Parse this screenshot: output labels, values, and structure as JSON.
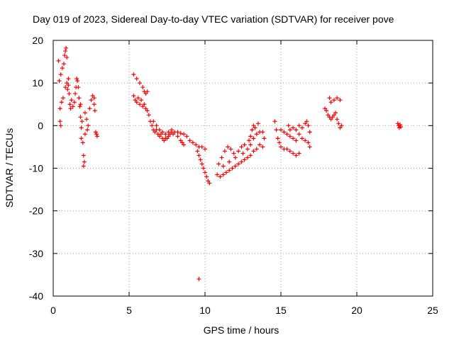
{
  "chart_data": {
    "type": "scatter",
    "title": "Day 019 of 2023, Sidereal Day-to-day VTEC variation (SDTVAR) for receiver pove",
    "xlabel": "GPS time / hours",
    "ylabel": "SDTVAR / TECUs",
    "xlim": [
      0,
      25
    ],
    "ylim": [
      -40,
      20
    ],
    "xticks": [
      0,
      5,
      10,
      15,
      20,
      25
    ],
    "yticks": [
      -40,
      -30,
      -20,
      -10,
      0,
      10,
      20
    ],
    "grid": true,
    "marker": "+",
    "color": "#ff0000",
    "series": [
      {
        "name": "SDTVAR",
        "points": [
          [
            0.35,
            15.2
          ],
          [
            0.4,
            10.5
          ],
          [
            0.45,
            4.0
          ],
          [
            0.45,
            1.0
          ],
          [
            0.5,
            0.0
          ],
          [
            0.5,
            12.0
          ],
          [
            0.55,
            5.5
          ],
          [
            0.6,
            13.5
          ],
          [
            0.65,
            6.5
          ],
          [
            0.7,
            14.5
          ],
          [
            0.75,
            16.5
          ],
          [
            0.8,
            17.5
          ],
          [
            0.85,
            18.2
          ],
          [
            0.9,
            16.0
          ],
          [
            0.8,
            9.0
          ],
          [
            0.9,
            10.0
          ],
          [
            0.95,
            8.5
          ],
          [
            1.0,
            9.5
          ],
          [
            1.0,
            11.0
          ],
          [
            1.05,
            7.5
          ],
          [
            1.1,
            5.0
          ],
          [
            1.15,
            4.0
          ],
          [
            1.2,
            6.0
          ],
          [
            1.3,
            4.5
          ],
          [
            1.4,
            5.5
          ],
          [
            1.45,
            7.5
          ],
          [
            1.5,
            9.0
          ],
          [
            1.55,
            11.0
          ],
          [
            1.6,
            10.5
          ],
          [
            1.65,
            9.0
          ],
          [
            1.7,
            6.5
          ],
          [
            1.75,
            4.5
          ],
          [
            1.8,
            5.0
          ],
          [
            1.8,
            2.0
          ],
          [
            1.85,
            -0.5
          ],
          [
            1.85,
            -3.0
          ],
          [
            1.9,
            1.0
          ],
          [
            1.95,
            -4.0
          ],
          [
            2.0,
            -7.0
          ],
          [
            2.0,
            -9.5
          ],
          [
            2.05,
            -8.5
          ],
          [
            2.1,
            -2.0
          ],
          [
            2.1,
            3.0
          ],
          [
            2.2,
            1.5
          ],
          [
            2.25,
            -1.0
          ],
          [
            2.3,
            0.0
          ],
          [
            2.4,
            4.0
          ],
          [
            2.5,
            6.0
          ],
          [
            2.6,
            7.0
          ],
          [
            2.7,
            5.0
          ],
          [
            2.75,
            3.5
          ],
          [
            2.8,
            -1.5
          ],
          [
            2.85,
            -2.0
          ],
          [
            2.9,
            -2.5
          ],
          [
            2.7,
            6.5
          ],
          [
            5.3,
            12.0
          ],
          [
            5.5,
            11.0
          ],
          [
            5.7,
            10.0
          ],
          [
            5.9,
            9.0
          ],
          [
            6.0,
            8.0
          ],
          [
            6.1,
            7.5
          ],
          [
            6.2,
            8.0
          ],
          [
            5.3,
            7.0
          ],
          [
            5.4,
            6.0
          ],
          [
            5.5,
            5.5
          ],
          [
            5.6,
            6.5
          ],
          [
            5.7,
            5.0
          ],
          [
            5.8,
            6.0
          ],
          [
            5.9,
            4.5
          ],
          [
            6.0,
            5.0
          ],
          [
            6.1,
            4.0
          ],
          [
            6.2,
            3.5
          ],
          [
            6.3,
            2.5
          ],
          [
            6.4,
            1.0
          ],
          [
            6.5,
            0.0
          ],
          [
            6.6,
            -1.0
          ],
          [
            6.7,
            -1.5
          ],
          [
            6.8,
            -1.0
          ],
          [
            6.9,
            -2.0
          ],
          [
            7.0,
            -2.5
          ],
          [
            7.1,
            -2.0
          ],
          [
            7.2,
            -3.0
          ],
          [
            7.3,
            -3.5
          ],
          [
            7.4,
            -3.0
          ],
          [
            7.5,
            -3.0
          ],
          [
            7.6,
            -2.5
          ],
          [
            7.7,
            -2.0
          ],
          [
            7.8,
            -1.5
          ],
          [
            7.9,
            -2.0
          ],
          [
            6.6,
            1.0
          ],
          [
            6.8,
            0.0
          ],
          [
            7.0,
            -1.0
          ],
          [
            7.2,
            -1.5
          ],
          [
            7.4,
            -2.0
          ],
          [
            7.6,
            -1.5
          ],
          [
            7.8,
            -1.0
          ],
          [
            8.0,
            -1.5
          ],
          [
            8.2,
            -2.5
          ],
          [
            8.4,
            -3.5
          ],
          [
            8.5,
            -4.0
          ],
          [
            8.6,
            -4.5
          ],
          [
            8.2,
            -1.5
          ],
          [
            8.4,
            -1.8
          ],
          [
            8.6,
            -2.0
          ],
          [
            8.8,
            -2.5
          ],
          [
            9.0,
            -3.5
          ],
          [
            9.2,
            -4.0
          ],
          [
            9.4,
            -4.5
          ],
          [
            9.6,
            -5.0
          ],
          [
            9.8,
            -5.0
          ],
          [
            10.0,
            -5.5
          ],
          [
            9.5,
            -6.0
          ],
          [
            9.6,
            -7.0
          ],
          [
            9.7,
            -8.0
          ],
          [
            9.8,
            -9.0
          ],
          [
            9.9,
            -10.0
          ],
          [
            10.0,
            -11.0
          ],
          [
            10.1,
            -12.0
          ],
          [
            10.2,
            -13.0
          ],
          [
            10.3,
            -13.5
          ],
          [
            9.6,
            -36.0
          ],
          [
            10.8,
            -11.5
          ],
          [
            11.0,
            -12.0
          ],
          [
            11.2,
            -11.5
          ],
          [
            11.4,
            -11.0
          ],
          [
            11.6,
            -10.5
          ],
          [
            11.8,
            -10.0
          ],
          [
            12.0,
            -9.5
          ],
          [
            12.2,
            -9.0
          ],
          [
            12.4,
            -8.5
          ],
          [
            12.6,
            -8.0
          ],
          [
            12.8,
            -7.5
          ],
          [
            13.0,
            -7.0
          ],
          [
            10.9,
            -9.0
          ],
          [
            11.1,
            -7.5
          ],
          [
            11.3,
            -6.0
          ],
          [
            11.5,
            -5.0
          ],
          [
            11.7,
            -5.5
          ],
          [
            11.9,
            -6.5
          ],
          [
            11.2,
            -9.5
          ],
          [
            11.6,
            -8.5
          ],
          [
            12.0,
            -7.5
          ],
          [
            12.2,
            -6.0
          ],
          [
            12.4,
            -5.0
          ],
          [
            12.6,
            -4.5
          ],
          [
            12.5,
            -6.5
          ],
          [
            12.8,
            -5.5
          ],
          [
            13.0,
            -4.5
          ],
          [
            13.2,
            -3.0
          ],
          [
            13.4,
            -2.0
          ],
          [
            13.6,
            -1.5
          ],
          [
            12.9,
            -3.5
          ],
          [
            13.0,
            -2.5
          ],
          [
            13.1,
            -1.0
          ],
          [
            13.2,
            0.0
          ],
          [
            13.3,
            -0.5
          ],
          [
            13.5,
            0.5
          ],
          [
            13.8,
            -1.5
          ],
          [
            13.9,
            -3.0
          ],
          [
            13.8,
            -5.0
          ],
          [
            13.6,
            -4.5
          ],
          [
            13.4,
            -5.5
          ],
          [
            13.2,
            -6.0
          ],
          [
            14.6,
            1.0
          ],
          [
            14.7,
            -1.0
          ],
          [
            14.8,
            -3.0
          ],
          [
            14.9,
            -4.0
          ],
          [
            15.0,
            -5.0
          ],
          [
            15.2,
            -5.5
          ],
          [
            15.4,
            -5.5
          ],
          [
            15.6,
            -6.0
          ],
          [
            15.8,
            -6.5
          ],
          [
            16.0,
            -7.0
          ],
          [
            16.2,
            -6.5
          ],
          [
            15.0,
            -1.0
          ],
          [
            15.2,
            -1.5
          ],
          [
            15.4,
            -2.0
          ],
          [
            15.6,
            -2.5
          ],
          [
            15.8,
            -3.0
          ],
          [
            16.0,
            -3.5
          ],
          [
            15.6,
            -1.0
          ],
          [
            15.8,
            -0.5
          ],
          [
            16.0,
            -1.0
          ],
          [
            16.2,
            -2.0
          ],
          [
            16.4,
            -3.0
          ],
          [
            16.6,
            -3.5
          ],
          [
            16.4,
            -0.5
          ],
          [
            16.6,
            0.5
          ],
          [
            16.7,
            1.0
          ],
          [
            16.8,
            0.0
          ],
          [
            16.9,
            -1.5
          ],
          [
            16.8,
            -4.0
          ],
          [
            16.9,
            -5.0
          ],
          [
            15.5,
            0.0
          ],
          [
            16.2,
            0.0
          ],
          [
            17.9,
            4.0
          ],
          [
            18.0,
            3.5
          ],
          [
            18.1,
            2.5
          ],
          [
            18.2,
            2.0
          ],
          [
            18.3,
            1.5
          ],
          [
            18.4,
            2.0
          ],
          [
            18.5,
            2.5
          ],
          [
            18.6,
            3.0
          ],
          [
            18.7,
            1.5
          ],
          [
            18.8,
            0.5
          ],
          [
            18.9,
            -0.5
          ],
          [
            19.0,
            0.0
          ],
          [
            18.2,
            6.5
          ],
          [
            18.3,
            5.5
          ],
          [
            18.5,
            6.0
          ],
          [
            18.7,
            6.5
          ],
          [
            18.9,
            6.0
          ],
          [
            22.7,
            0.5
          ],
          [
            22.75,
            0.0
          ],
          [
            22.8,
            -0.5
          ],
          [
            22.85,
            0.2
          ],
          [
            22.9,
            -0.3
          ]
        ]
      }
    ]
  }
}
